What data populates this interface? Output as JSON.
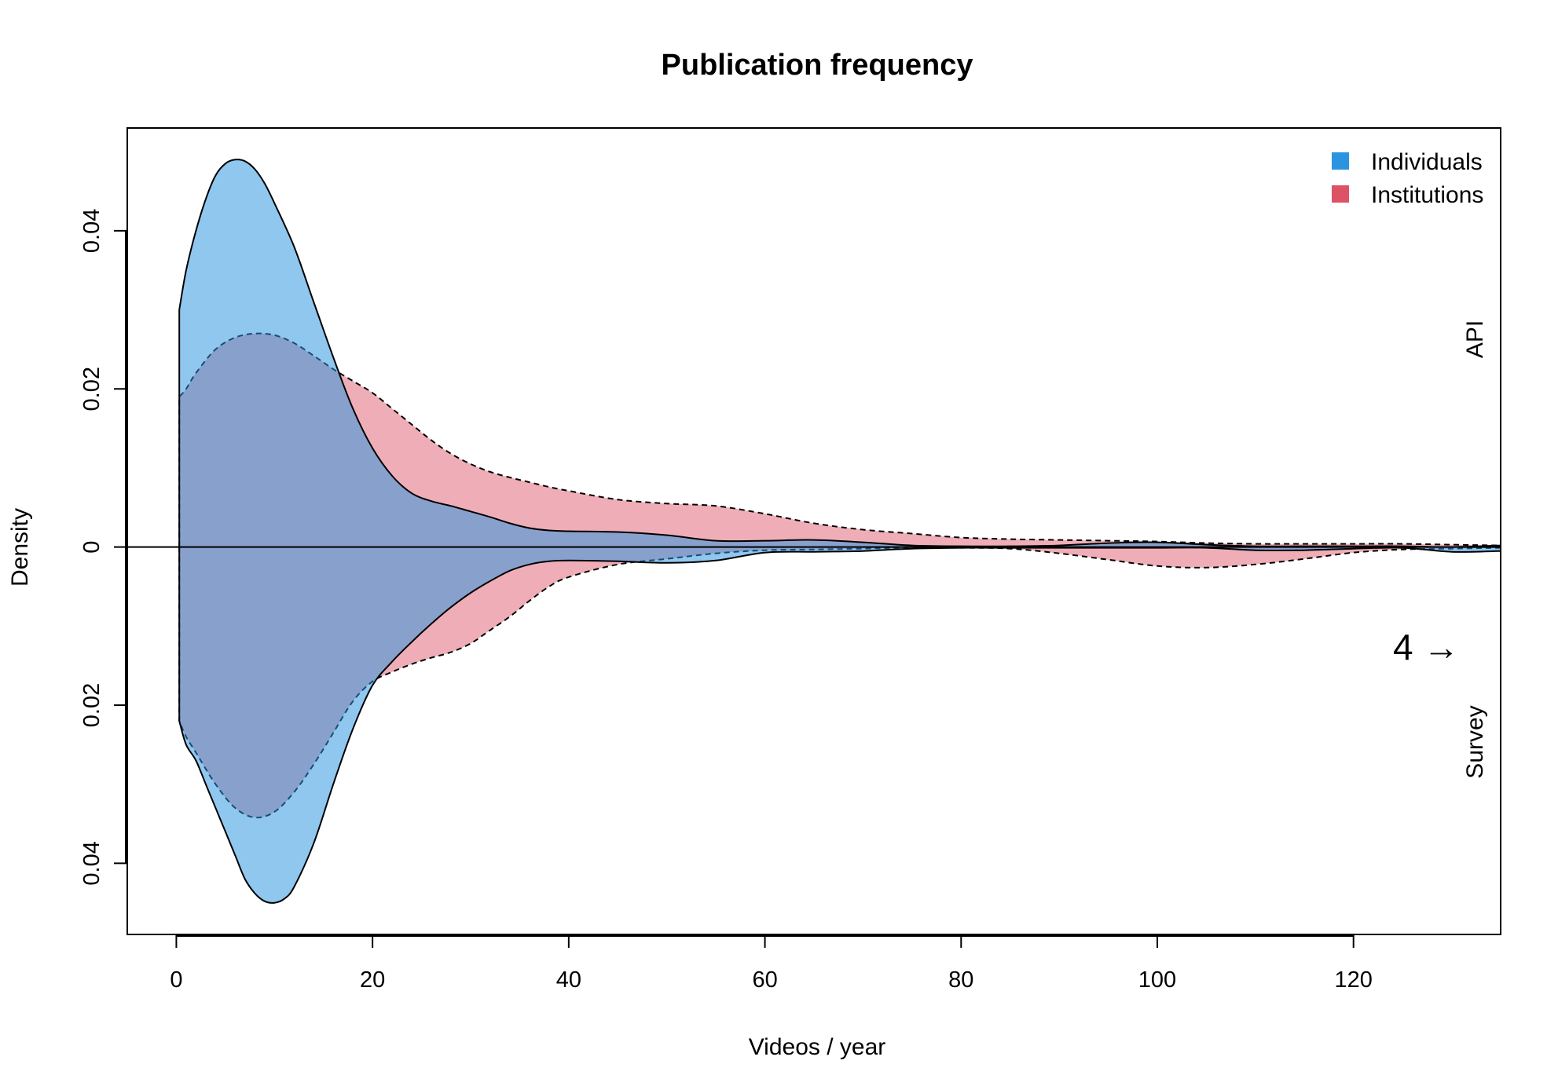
{
  "chart_data": {
    "type": "area",
    "title": "Publication frequency",
    "xlabel": "Videos / year",
    "ylabel": "Density",
    "xlim": [
      -5,
      135
    ],
    "ylim": [
      -0.049,
      0.053
    ],
    "x_ticks": [
      0,
      20,
      40,
      60,
      80,
      100,
      120
    ],
    "x_tick_labels": [
      "0",
      "20",
      "40",
      "60",
      "80",
      "100",
      "120"
    ],
    "y_ticks": [
      -0.04,
      -0.02,
      0,
      0.02,
      0.04
    ],
    "y_tick_labels": [
      "0.04",
      "0.02",
      "0",
      "0.02",
      "0.04"
    ],
    "grid": false,
    "legend_position": "top-right",
    "legend": [
      {
        "label": "Individuals",
        "color": "#2b94e0"
      },
      {
        "label": "Institutions",
        "color": "#de5266"
      }
    ],
    "panel_labels": {
      "top": "API",
      "bottom": "Survey"
    },
    "annotation": "4 →",
    "fill_colors": {
      "individuals": "rgba(43,148,224,0.52)",
      "institutions": "rgba(222,82,102,0.47)"
    },
    "series": [
      {
        "name": "Individuals",
        "panel": "API",
        "line_style": "solid",
        "x": [
          0.3,
          1,
          2,
          3,
          4,
          5,
          6,
          7,
          8,
          9,
          10,
          12,
          14,
          16,
          18,
          20,
          22,
          24,
          26,
          28,
          30,
          32,
          34,
          36,
          38,
          40,
          45,
          50,
          55,
          60,
          65,
          70,
          75,
          80,
          85,
          90,
          95,
          100,
          105,
          110,
          115,
          120,
          125,
          130,
          135
        ],
        "y": [
          0.03,
          0.035,
          0.04,
          0.044,
          0.047,
          0.0485,
          0.049,
          0.0488,
          0.0478,
          0.046,
          0.0435,
          0.038,
          0.031,
          0.024,
          0.0175,
          0.0125,
          0.009,
          0.0068,
          0.0058,
          0.0052,
          0.0045,
          0.0038,
          0.003,
          0.0024,
          0.0021,
          0.002,
          0.0019,
          0.0015,
          0.0008,
          0.0008,
          0.0009,
          0.0006,
          0.0002,
          0.0001,
          0.0001,
          0.0002,
          0.0005,
          0.0006,
          0.0003,
          0.0001,
          0.0001,
          0.0001,
          0.0001,
          0.0,
          0.0002
        ]
      },
      {
        "name": "Institutions",
        "panel": "API",
        "line_style": "dashed",
        "x": [
          0.3,
          1,
          2,
          4,
          6,
          8,
          10,
          12,
          14,
          16,
          18,
          20,
          22,
          24,
          26,
          28,
          30,
          32,
          34,
          36,
          38,
          40,
          45,
          50,
          55,
          60,
          65,
          70,
          75,
          80,
          85,
          90,
          95,
          100,
          105,
          110,
          115,
          120,
          125,
          130,
          135
        ],
        "y": [
          0.019,
          0.02,
          0.022,
          0.025,
          0.0265,
          0.027,
          0.0268,
          0.0258,
          0.0242,
          0.0225,
          0.021,
          0.0195,
          0.0175,
          0.0155,
          0.0135,
          0.0118,
          0.0105,
          0.0095,
          0.0088,
          0.0082,
          0.0076,
          0.0071,
          0.006,
          0.0055,
          0.0052,
          0.0042,
          0.003,
          0.0022,
          0.0017,
          0.0012,
          0.001,
          0.0009,
          0.0008,
          0.0007,
          0.0005,
          0.0004,
          0.0004,
          0.0004,
          0.0004,
          0.0003,
          0.0002
        ]
      },
      {
        "name": "Individuals",
        "panel": "Survey",
        "line_style": "solid",
        "x": [
          0.3,
          1,
          2,
          3,
          4,
          5,
          6,
          7,
          8,
          9,
          10,
          11,
          12,
          14,
          16,
          18,
          20,
          22,
          24,
          26,
          28,
          30,
          32,
          34,
          36,
          38,
          40,
          45,
          50,
          55,
          60,
          65,
          70,
          75,
          80,
          85,
          90,
          95,
          100,
          105,
          110,
          115,
          120,
          125,
          130,
          135
        ],
        "y": [
          -0.022,
          -0.025,
          -0.027,
          -0.03,
          -0.033,
          -0.036,
          -0.039,
          -0.042,
          -0.0438,
          -0.0448,
          -0.045,
          -0.0445,
          -0.043,
          -0.0375,
          -0.03,
          -0.023,
          -0.0175,
          -0.0145,
          -0.012,
          -0.0097,
          -0.0076,
          -0.0058,
          -0.0043,
          -0.003,
          -0.0022,
          -0.0018,
          -0.0017,
          -0.0018,
          -0.002,
          -0.0017,
          -0.0007,
          -0.0006,
          -0.0005,
          -0.0002,
          -0.0001,
          -0.0001,
          -0.0001,
          -0.0001,
          -0.0001,
          -0.0001,
          -0.0004,
          -0.0004,
          -0.0002,
          -0.0001,
          -0.0006,
          -0.0005
        ]
      },
      {
        "name": "Institutions",
        "panel": "Survey",
        "line_style": "dashed",
        "x": [
          0.3,
          1,
          2,
          4,
          6,
          8,
          10,
          12,
          14,
          16,
          18,
          20,
          22,
          24,
          26,
          28,
          30,
          32,
          34,
          36,
          38,
          40,
          45,
          50,
          55,
          60,
          65,
          70,
          75,
          80,
          85,
          90,
          95,
          100,
          105,
          110,
          115,
          120,
          125,
          130,
          135
        ],
        "y": [
          -0.022,
          -0.024,
          -0.026,
          -0.03,
          -0.033,
          -0.0342,
          -0.0335,
          -0.031,
          -0.0275,
          -0.0235,
          -0.0195,
          -0.017,
          -0.0158,
          -0.0148,
          -0.014,
          -0.0133,
          -0.0122,
          -0.0105,
          -0.0088,
          -0.0068,
          -0.005,
          -0.0038,
          -0.0022,
          -0.0015,
          -0.0008,
          -0.0004,
          -0.0003,
          -0.0002,
          -0.0001,
          -0.0001,
          -0.0002,
          -0.0008,
          -0.0016,
          -0.0024,
          -0.0026,
          -0.0022,
          -0.0015,
          -0.0007,
          -0.0003,
          -0.0002,
          -0.0001
        ]
      }
    ]
  }
}
